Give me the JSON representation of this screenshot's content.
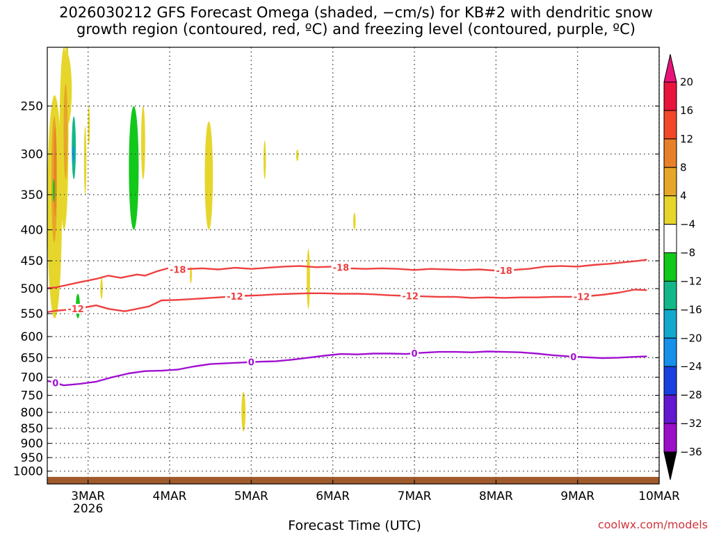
{
  "title_line1": "2026030212 GFS Forecast Omega (shaded, −cm/s) for KB#2 with dendritic snow",
  "title_line2": "growth region (contoured, red, ºC) and freezing level (contoured, purple, ºC)",
  "credit": "coolwx.com/models",
  "chart_data": {
    "type": "area",
    "title": "2026030212 GFS Forecast Omega (shaded, −cm/s) for KB#2 with dendritic snow growth region (contoured, red, ºC) and freezing level (contoured, purple, ºC)",
    "xlabel": "Forecast Time (UTC)",
    "ylabel": "",
    "x_range": [
      "2026-03-02T12",
      "2026-03-10T00"
    ],
    "y_range_hpa": [
      1050,
      200
    ],
    "y_scale": "log",
    "grid": true,
    "x_ticks": [
      {
        "t": 0.5,
        "label": "3MAR",
        "sub": "2026"
      },
      {
        "t": 1.5,
        "label": "4MAR"
      },
      {
        "t": 2.5,
        "label": "5MAR"
      },
      {
        "t": 3.5,
        "label": "6MAR"
      },
      {
        "t": 4.5,
        "label": "7MAR"
      },
      {
        "t": 5.5,
        "label": "8MAR"
      },
      {
        "t": 6.5,
        "label": "9MAR"
      },
      {
        "t": 7.5,
        "label": "10MAR"
      }
    ],
    "y_ticks": [
      250,
      300,
      350,
      400,
      450,
      500,
      550,
      600,
      650,
      700,
      750,
      800,
      850,
      900,
      950,
      1000
    ],
    "colorbar": {
      "labels": [
        "20",
        "16",
        "12",
        "8",
        "4",
        "−4",
        "−8",
        "−12",
        "−16",
        "−20",
        "−24",
        "−28",
        "−32",
        "−36"
      ],
      "colors": [
        "#e8143c",
        "#f04828",
        "#e8802a",
        "#e6a628",
        "#e6d62c",
        "#ffffff",
        "#12c81a",
        "#14b888",
        "#14a8cc",
        "#1690ea",
        "#1a40e0",
        "#6418d0",
        "#9a10c8",
        "#a4a4a4",
        "#000000"
      ],
      "top_color": "#e8147a",
      "bottom_color": "#000000"
    },
    "series": [
      {
        "name": "-18",
        "color": "#ee4040",
        "labels_at": [
          1.6,
          3.6,
          5.6
        ],
        "points": [
          [
            -0.05,
            500
          ],
          [
            0.1,
            498
          ],
          [
            0.4,
            488
          ],
          [
            0.6,
            482
          ],
          [
            0.75,
            476
          ],
          [
            0.9,
            480
          ],
          [
            1.1,
            474
          ],
          [
            1.2,
            476
          ],
          [
            1.35,
            468
          ],
          [
            1.5,
            462
          ],
          [
            1.6,
            465
          ],
          [
            1.9,
            463
          ],
          [
            2.1,
            465
          ],
          [
            2.3,
            462
          ],
          [
            2.5,
            464
          ],
          [
            2.7,
            462
          ],
          [
            2.9,
            460
          ],
          [
            3.1,
            459
          ],
          [
            3.3,
            461
          ],
          [
            3.5,
            460
          ],
          [
            3.7,
            463
          ],
          [
            3.9,
            464
          ],
          [
            4.1,
            463
          ],
          [
            4.3,
            464
          ],
          [
            4.5,
            466
          ],
          [
            4.7,
            464
          ],
          [
            4.9,
            465
          ],
          [
            5.1,
            466
          ],
          [
            5.3,
            465
          ],
          [
            5.5,
            467
          ],
          [
            5.7,
            466
          ],
          [
            5.9,
            464
          ],
          [
            6.1,
            460
          ],
          [
            6.3,
            459
          ],
          [
            6.5,
            460
          ],
          [
            6.7,
            457
          ],
          [
            6.9,
            455
          ],
          [
            7.1,
            452
          ],
          [
            7.25,
            450
          ],
          [
            7.35,
            448
          ]
        ]
      },
      {
        "name": "-12",
        "color": "#ee4040",
        "labels_at": [
          0.35,
          2.3,
          4.45,
          6.55
        ],
        "points": [
          [
            -0.05,
            548
          ],
          [
            0.1,
            544
          ],
          [
            0.3,
            541
          ],
          [
            0.5,
            536
          ],
          [
            0.6,
            533
          ],
          [
            0.75,
            540
          ],
          [
            0.95,
            545
          ],
          [
            1.1,
            540
          ],
          [
            1.25,
            535
          ],
          [
            1.4,
            523
          ],
          [
            1.6,
            522
          ],
          [
            1.8,
            520
          ],
          [
            2.0,
            518
          ],
          [
            2.2,
            516
          ],
          [
            2.4,
            514
          ],
          [
            2.6,
            513
          ],
          [
            2.8,
            511
          ],
          [
            3.0,
            510
          ],
          [
            3.2,
            509
          ],
          [
            3.4,
            509
          ],
          [
            3.6,
            510
          ],
          [
            3.8,
            510
          ],
          [
            4.0,
            511
          ],
          [
            4.2,
            513
          ],
          [
            4.4,
            514
          ],
          [
            4.6,
            515
          ],
          [
            4.8,
            516
          ],
          [
            5.0,
            516
          ],
          [
            5.2,
            518
          ],
          [
            5.4,
            517
          ],
          [
            5.6,
            518
          ],
          [
            5.8,
            517
          ],
          [
            6.0,
            517
          ],
          [
            6.2,
            516
          ],
          [
            6.4,
            516
          ],
          [
            6.6,
            515
          ],
          [
            6.8,
            512
          ],
          [
            7.0,
            508
          ],
          [
            7.2,
            502
          ],
          [
            7.35,
            503
          ]
        ]
      },
      {
        "name": "0",
        "color": "#a010d0",
        "labels_at": [
          0.1,
          2.5,
          4.5,
          6.45
        ],
        "points": [
          [
            -0.05,
            708
          ],
          [
            0.05,
            712
          ],
          [
            0.2,
            722
          ],
          [
            0.4,
            718
          ],
          [
            0.6,
            712
          ],
          [
            0.8,
            700
          ],
          [
            1.0,
            690
          ],
          [
            1.2,
            684
          ],
          [
            1.4,
            683
          ],
          [
            1.6,
            680
          ],
          [
            1.8,
            672
          ],
          [
            2.0,
            666
          ],
          [
            2.2,
            664
          ],
          [
            2.4,
            662
          ],
          [
            2.6,
            660
          ],
          [
            2.8,
            659
          ],
          [
            3.0,
            655
          ],
          [
            3.2,
            650
          ],
          [
            3.4,
            645
          ],
          [
            3.6,
            641
          ],
          [
            3.8,
            642
          ],
          [
            4.0,
            640
          ],
          [
            4.2,
            640
          ],
          [
            4.4,
            641
          ],
          [
            4.6,
            638
          ],
          [
            4.8,
            636
          ],
          [
            5.0,
            636
          ],
          [
            5.2,
            637
          ],
          [
            5.4,
            635
          ],
          [
            5.6,
            636
          ],
          [
            5.8,
            637
          ],
          [
            6.0,
            640
          ],
          [
            6.2,
            644
          ],
          [
            6.4,
            647
          ],
          [
            6.6,
            649
          ],
          [
            6.8,
            651
          ],
          [
            7.0,
            650
          ],
          [
            7.2,
            648
          ],
          [
            7.35,
            647
          ]
        ]
      }
    ],
    "shading": [
      {
        "value": 4,
        "color": "#e6d62c",
        "blobs": [
          [
            0.0,
            240,
            0.18,
            560
          ],
          [
            0.18,
            205,
            0.3,
            270
          ],
          [
            0.22,
            185,
            0.26,
            290
          ],
          [
            0.15,
            200,
            0.26,
            400
          ],
          [
            0.45,
            270,
            0.48,
            350
          ],
          [
            0.5,
            250,
            0.52,
            290
          ],
          [
            1.15,
            250,
            1.2,
            330
          ],
          [
            1.93,
            265,
            2.03,
            400
          ],
          [
            2.38,
            740,
            2.43,
            860
          ],
          [
            2.65,
            285,
            2.68,
            330
          ],
          [
            3.05,
            295,
            3.08,
            308
          ],
          [
            3.75,
            375,
            3.78,
            400
          ],
          [
            3.18,
            430,
            3.22,
            540
          ],
          [
            1.75,
            460,
            1.77,
            490
          ],
          [
            0.65,
            480,
            0.68,
            520
          ]
        ]
      },
      {
        "value": 8,
        "color": "#e6a628",
        "blobs": [
          [
            0.05,
            260,
            0.12,
            420
          ],
          [
            0.2,
            230,
            0.25,
            330
          ]
        ]
      },
      {
        "value": 12,
        "color": "#e8802a",
        "blobs": [
          [
            0.08,
            270,
            0.11,
            380
          ]
        ]
      },
      {
        "value": -4,
        "color": "#12c81a",
        "blobs": [
          [
            1.0,
            250,
            1.12,
            400
          ],
          [
            0.35,
            510,
            0.4,
            560
          ],
          [
            0.07,
            330,
            0.09,
            360
          ]
        ]
      },
      {
        "value": -8,
        "color": "#14b888",
        "blobs": [
          [
            0.3,
            260,
            0.35,
            330
          ]
        ]
      },
      {
        "value": -16,
        "color": "#1690ea",
        "blobs": [
          [
            0.31,
            290,
            0.33,
            310
          ]
        ]
      }
    ],
    "terrain": {
      "color": "#a05a2c",
      "pressure_hpa": 1025
    }
  }
}
